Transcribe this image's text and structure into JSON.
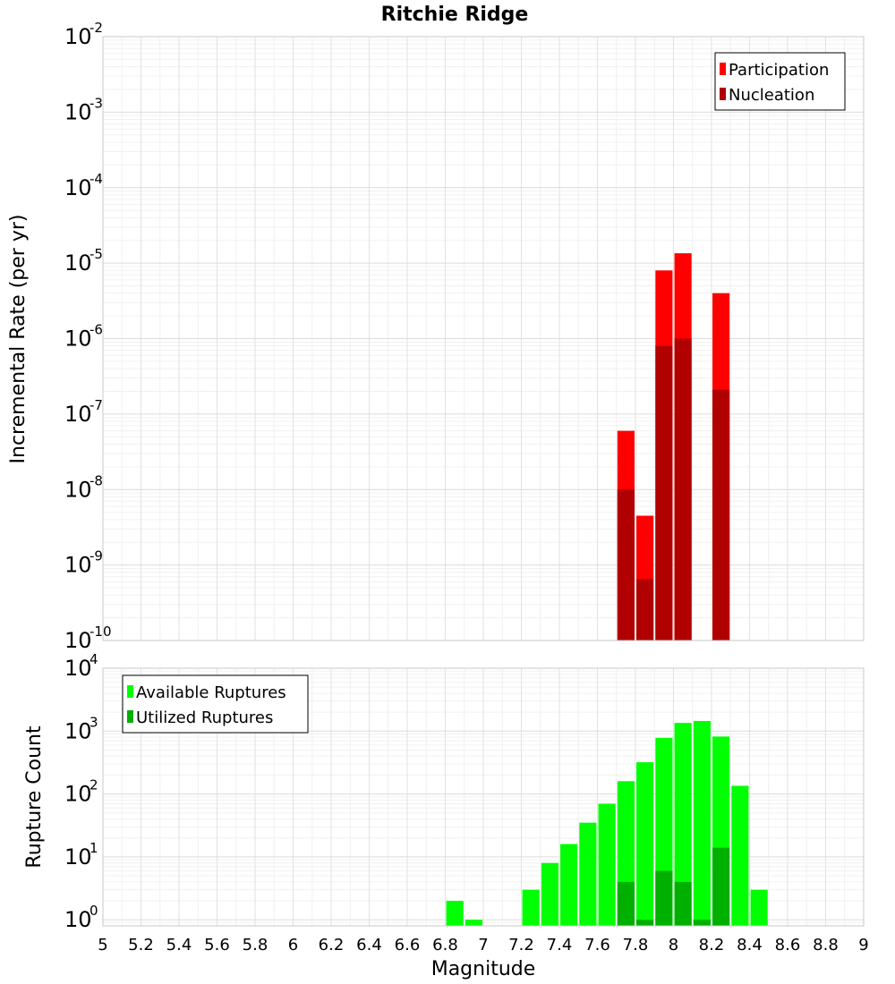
{
  "chart_data": [
    {
      "type": "bar",
      "title": "Ritchie Ridge",
      "ylabel": "Incremental Rate (per yr)",
      "xlabel": "",
      "y_scale": "log",
      "ylim": [
        1e-10,
        0.01
      ],
      "xlim": [
        5,
        9
      ],
      "y_tick_exponents": [
        -10,
        -9,
        -8,
        -7,
        -6,
        -5,
        -4,
        -3,
        -2
      ],
      "grid": true,
      "legend_placement": "top-right",
      "bar_width": 0.09,
      "series": [
        {
          "name": "Participation",
          "color": "#ff0000",
          "x": [
            7.75,
            7.85,
            7.95,
            8.05,
            8.25
          ],
          "values": [
            6e-08,
            4.5e-09,
            8e-06,
            1.35e-05,
            4e-06
          ]
        },
        {
          "name": "Nucleation",
          "color": "#b00000",
          "x": [
            7.75,
            7.85,
            7.95,
            8.05,
            8.25
          ],
          "values": [
            1e-08,
            6.5e-10,
            8e-07,
            1e-06,
            2.1e-07
          ]
        }
      ]
    },
    {
      "type": "bar",
      "title": "",
      "ylabel": "Rupture Count",
      "xlabel": "Magnitude",
      "y_scale": "log",
      "ylim": [
        0.8,
        10000
      ],
      "xlim": [
        5,
        9
      ],
      "y_tick_exponents": [
        0,
        1,
        2,
        3,
        4
      ],
      "x_ticks": [
        "5",
        "5.2",
        "5.4",
        "5.6",
        "5.8",
        "6",
        "6.2",
        "6.4",
        "6.6",
        "6.8",
        "7",
        "7.2",
        "7.4",
        "7.6",
        "7.8",
        "8",
        "8.2",
        "8.4",
        "8.6",
        "8.8",
        "9"
      ],
      "grid": true,
      "legend_placement": "top-left",
      "bar_width": 0.09,
      "series": [
        {
          "name": "Available Ruptures",
          "color": "#00ff00",
          "x": [
            6.85,
            6.95,
            7.25,
            7.35,
            7.45,
            7.55,
            7.65,
            7.75,
            7.85,
            7.95,
            8.05,
            8.15,
            8.25,
            8.35,
            8.45
          ],
          "values": [
            2,
            1,
            3,
            8,
            16,
            35,
            70,
            160,
            320,
            780,
            1350,
            1450,
            820,
            135,
            3
          ]
        },
        {
          "name": "Utilized Ruptures",
          "color": "#00b000",
          "x": [
            7.75,
            7.85,
            7.95,
            8.05,
            8.15,
            8.25
          ],
          "values": [
            4,
            1,
            6,
            4,
            1,
            14
          ]
        }
      ]
    }
  ]
}
